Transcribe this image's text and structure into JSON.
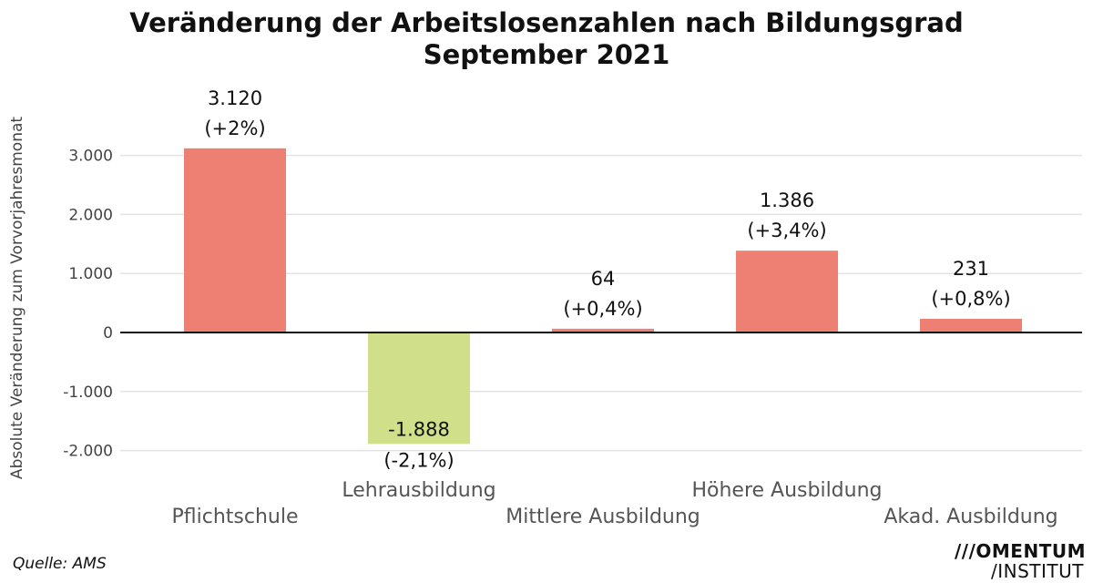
{
  "chart_data": {
    "type": "bar",
    "title": "Veränderung der Arbeitslosenzahlen nach Bildungsgrad",
    "subtitle": "September 2021",
    "ylabel": "Absolute Veränderung zum Vorvorjahresmonat",
    "xlabel": "",
    "ylim": [
      -2200,
      3400
    ],
    "yticks": [
      3000,
      2000,
      1000,
      0,
      -1000,
      -2000
    ],
    "ytick_labels": [
      "3.000",
      "2.000",
      "1.000",
      "0",
      "-1.000",
      "-2.000"
    ],
    "categories": [
      "Pflichtschule",
      "Lehrausbildung",
      "Mittlere Ausbildung",
      "Höhere Ausbildung",
      "Akad. Ausbildung"
    ],
    "values": [
      3120,
      -1888,
      64,
      1386,
      231
    ],
    "value_labels": [
      "3.120",
      "-1.888",
      "64",
      "1.386",
      "231"
    ],
    "percent_labels": [
      "(+2%)",
      "(-2,1%)",
      "(+0,4%)",
      "(+3,4%)",
      "(+0,8%)"
    ],
    "colors": {
      "positive": "#ee7f73",
      "negative": "#d0df8a"
    },
    "grid": true,
    "legend": "none"
  },
  "source": "Quelle: AMS",
  "logo": {
    "line1": "///OMENTUM",
    "line2": "/INSTITUT"
  }
}
